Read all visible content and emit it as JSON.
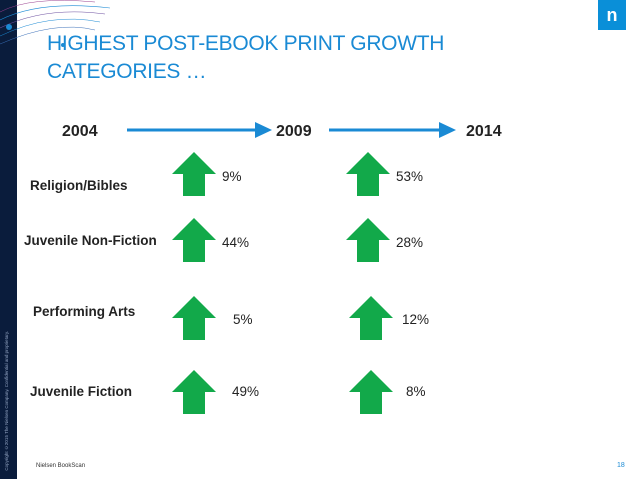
{
  "header": {
    "title_line1": "HIGHEST POST-EBOOK PRINT GROWTH",
    "title_line2": "CATEGORIES …",
    "logo_letter": "n"
  },
  "sidebar": {
    "copyright": "Copyright ©2015 The Nielsen Company. Confidential and proprietary."
  },
  "timeline": {
    "years": [
      "2004",
      "2009",
      "2014"
    ],
    "arrow_color": "#1a8ad4"
  },
  "categories": [
    {
      "name": "Religion/Bibles",
      "growth_2004_2009": "9%",
      "growth_2009_2014": "53%"
    },
    {
      "name": "Juvenile Non-Fiction",
      "growth_2004_2009": "44%",
      "growth_2009_2014": "28%"
    },
    {
      "name": "Performing Arts",
      "growth_2004_2009": "5%",
      "growth_2009_2014": "12%"
    },
    {
      "name": "Juvenile Fiction",
      "growth_2004_2009": "49%",
      "growth_2009_2014": "8%"
    }
  ],
  "growth_arrow_color": "#12a94a",
  "footer": {
    "source": "Nielsen BookScan",
    "page_number": "18"
  }
}
